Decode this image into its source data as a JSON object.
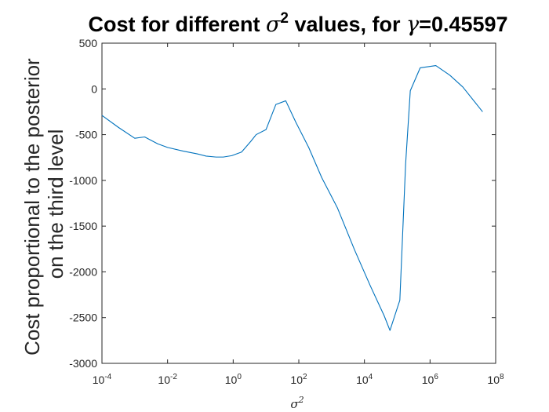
{
  "chart_data": {
    "type": "line",
    "title": "Cost for different σ² values, for γ=0.45597",
    "title_parts": {
      "prefix": "Cost for different ",
      "sigma": "σ",
      "sup": "2",
      "middle": " values, for ",
      "gamma": "γ",
      "suffix": "=0.45597"
    },
    "xlabel": {
      "base": "σ",
      "sup": "2"
    },
    "ylabel": [
      "Cost proportional to the posterior",
      "on the third level"
    ],
    "xscale": "log",
    "xlim": [
      0.0001,
      100000000
    ],
    "ylim": [
      -3000,
      500
    ],
    "grid": false,
    "line_color": "#0072BD",
    "x_ticks": [
      {
        "value": 0.0001,
        "base": "10",
        "exp": "-4"
      },
      {
        "value": 0.01,
        "base": "10",
        "exp": "-2"
      },
      {
        "value": 1,
        "base": "10",
        "exp": "0"
      },
      {
        "value": 100,
        "base": "10",
        "exp": "2"
      },
      {
        "value": 10000,
        "base": "10",
        "exp": "4"
      },
      {
        "value": 1000000,
        "base": "10",
        "exp": "6"
      },
      {
        "value": 100000000,
        "base": "10",
        "exp": "8"
      }
    ],
    "y_ticks": [
      {
        "value": 500,
        "label": "500"
      },
      {
        "value": 0,
        "label": "0"
      },
      {
        "value": -500,
        "label": "-500"
      },
      {
        "value": -1000,
        "label": "-1000"
      },
      {
        "value": -1500,
        "label": "-1500"
      },
      {
        "value": -2000,
        "label": "-2000"
      },
      {
        "value": -2500,
        "label": "-2500"
      },
      {
        "value": -3000,
        "label": "-3000"
      }
    ],
    "series": [
      {
        "x": [
          0.0001,
          0.000316,
          0.001,
          0.002,
          0.005,
          0.01,
          0.03,
          0.08,
          0.15,
          0.3,
          0.5,
          0.9,
          1.8,
          3.5,
          5,
          10,
          20,
          40,
          80,
          200,
          500,
          1500,
          5000,
          15000,
          40000,
          60000,
          120000,
          180000,
          250000,
          500000,
          1500000,
          4000000,
          10000000,
          40000000
        ],
        "y": [
          -290,
          -420,
          -540,
          -525,
          -600,
          -640,
          -680,
          -710,
          -735,
          -745,
          -745,
          -730,
          -690,
          -570,
          -500,
          -445,
          -170,
          -130,
          -360,
          -640,
          -970,
          -1300,
          -1760,
          -2150,
          -2480,
          -2640,
          -2310,
          -820,
          -20,
          230,
          255,
          150,
          20,
          -250
        ]
      }
    ]
  }
}
